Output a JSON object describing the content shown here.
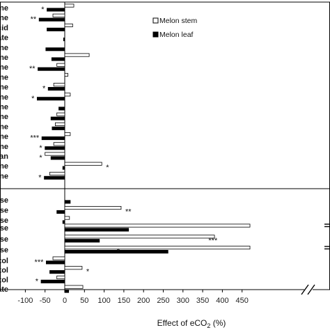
{
  "chart_data": {
    "type": "bar",
    "orientation": "horizontal",
    "xlabel": "Effect of eCO",
    "xlabel_sub": "2",
    "xlabel_suffix": " (%)",
    "xlim": [
      -100,
      475
    ],
    "x_ticks": [
      "-100",
      "-50",
      "0",
      "50",
      "100",
      "150",
      "200",
      "250",
      "300",
      "350",
      "400",
      "450"
    ],
    "x_tick_values": [
      -100,
      -50,
      0,
      50,
      100,
      150,
      200,
      250,
      300,
      350,
      400,
      450
    ],
    "axis_break": true,
    "legend_position": "top-right",
    "series": [
      {
        "name": "Melon stem",
        "key": "stem",
        "fill": "#ffffff",
        "stroke": "#000000"
      },
      {
        "name": "Melon leaf",
        "key": "leaf",
        "fill": "#000000",
        "stroke": "#000000"
      }
    ],
    "panels": [
      {
        "rows": [
          {
            "label": "ne",
            "stem": 23,
            "leaf": -45,
            "sig": "*"
          },
          {
            "label": "ne",
            "stem": -30,
            "leaf": -65,
            "sig": "**"
          },
          {
            "label": "cid",
            "stem": 20,
            "leaf": -45,
            "sig": ""
          },
          {
            "label": "ate",
            "stem": 0,
            "leaf": -3,
            "sig": ""
          },
          {
            "label": "ne",
            "stem": 0,
            "leaf": -48,
            "sig": ""
          },
          {
            "label": "ne",
            "stem": 62,
            "leaf": -33,
            "sig": ""
          },
          {
            "label": "ne",
            "stem": -20,
            "leaf": -68,
            "sig": "**"
          },
          {
            "label": "ne",
            "stem": 8,
            "leaf": 0,
            "sig": ""
          },
          {
            "label": "ne",
            "stem": -28,
            "leaf": -42,
            "sig": "*"
          },
          {
            "label": "ne",
            "stem": 14,
            "leaf": -70,
            "sig": "*"
          },
          {
            "label": "ne",
            "stem": 0,
            "leaf": -15,
            "sig": ""
          },
          {
            "label": "ne",
            "stem": -20,
            "leaf": -35,
            "sig": ""
          },
          {
            "label": "ne",
            "stem": -24,
            "leaf": -32,
            "sig": ""
          },
          {
            "label": "ne",
            "stem": 14,
            "leaf": -58,
            "sig": "***"
          },
          {
            "label": "ne",
            "stem": -28,
            "leaf": -50,
            "sig": "*"
          },
          {
            "label": "an",
            "stem": -50,
            "leaf": -35,
            "sig": "*"
          },
          {
            "label": "ne",
            "stem": 94,
            "leaf": -5,
            "sig": "*"
          },
          {
            "label": "ne",
            "stem": -38,
            "leaf": -52,
            "sig": "*"
          }
        ]
      },
      {
        "rows": [
          {
            "label": "se",
            "stem": 0,
            "leaf": 14,
            "sig": ""
          },
          {
            "label": "se",
            "stem": 143,
            "leaf": -20,
            "sig": "**"
          },
          {
            "label": "se",
            "stem": 12,
            "leaf": -5,
            "sig": ""
          }
        ]
      },
      {
        "rows": [
          {
            "label": "se",
            "stem": 470,
            "leaf": 162,
            "sig": ""
          },
          {
            "label": "se",
            "stem": 380,
            "leaf": 88,
            "sig": "***"
          },
          {
            "label": "se",
            "stem": 470,
            "leaf": 262,
            "sig": "*"
          }
        ]
      },
      {
        "rows": [
          {
            "label": "tol",
            "stem": -30,
            "leaf": -47,
            "sig": "***"
          },
          {
            "label": "tol",
            "stem": 44,
            "leaf": -38,
            "sig": "*"
          },
          {
            "label": "tol",
            "stem": -20,
            "leaf": -60,
            "sig": "*"
          },
          {
            "label": "ate",
            "stem": 46,
            "leaf": 10,
            "sig": ""
          }
        ]
      }
    ]
  }
}
